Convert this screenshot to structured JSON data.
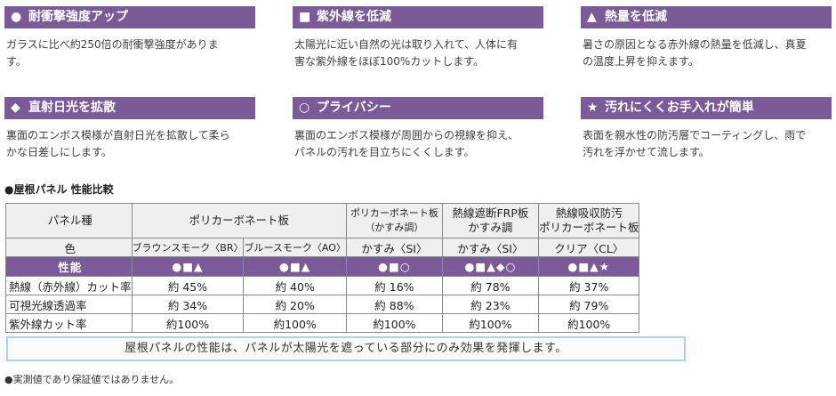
{
  "features": [
    {
      "symbol": "●",
      "title": "耐衝撃強度アップ",
      "body": [
        "ガラスに比べ約250倍の耐衝撃強度がありま",
        "す。"
      ]
    },
    {
      "symbol": "■",
      "title": "紫外線を低減",
      "body": [
        "太陽光に近い自然の光は取り入れて、人体に有",
        "害な紫外線をほぼ100%カットします。"
      ]
    },
    {
      "symbol": "▲",
      "title": "熱量を低減",
      "body": [
        "暑さの原因となる赤外線の熱量を低減し、真夏",
        "の温度上昇を抑えます。"
      ]
    },
    {
      "symbol": "◆",
      "title": "直射日光を拡散",
      "body": [
        "裏面のエンボス模様が直射日光を拡散して柔ら",
        "かな日差しにします。"
      ]
    },
    {
      "symbol": "○",
      "title": "プライバシー",
      "body": [
        "裏面のエンボス模様が周囲からの視線を抑え、",
        "パネルの汚れを目立ちにくくします。"
      ]
    },
    {
      "symbol": "★",
      "title": "汚れにくくお手入れが簡単",
      "body": [
        "表面を親水性の防汚層でコーティングし、雨で",
        "汚れを浮かせて流します。"
      ]
    }
  ],
  "section_title": "●屋根パネル 性能比較",
  "table": {
    "header": {
      "panel_label": "パネル種",
      "poly": "ポリカーボネート板",
      "poly_kasumi": [
        "ポリカーボネート板",
        "（かすみ調）"
      ],
      "frp": [
        "熱線遮断FRP板",
        "かすみ調"
      ],
      "heat": [
        "熱線吸収防汚",
        "ポリカーボネート板"
      ]
    },
    "color_row": {
      "label": "色",
      "values": [
        "ブラウンスモーク〈BR〉",
        "ブルースモーク〈AO〉",
        "かすみ〈SI〉",
        "かすみ〈SI〉",
        "クリア〈CL〉"
      ]
    },
    "perf_row": {
      "label": "性能",
      "values": [
        "●■▲",
        "●■▲",
        "●■○",
        "●■▲◆○",
        "●■▲★"
      ]
    },
    "rows": [
      {
        "label": "熱線（赤外線）カット率",
        "values": [
          "約 45%",
          "約 40%",
          "約 16%",
          "約 78%",
          "約 37%"
        ]
      },
      {
        "label": "可視光線透過率",
        "values": [
          "約 34%",
          "約 20%",
          "約 88%",
          "約 23%",
          "約 79%"
        ]
      },
      {
        "label": "紫外線カット率",
        "values": [
          "約100%",
          "約100%",
          "約100%",
          "約100%",
          "約100%"
        ]
      }
    ]
  },
  "note": "屋根パネルの性能は、パネルが太陽光を遮っている部分にのみ効果を発揮します。",
  "footnote": "●実測値であり保証値ではありません。",
  "colors": {
    "header_purple": "#7b5a98",
    "note_border": "#a9d3ea"
  }
}
